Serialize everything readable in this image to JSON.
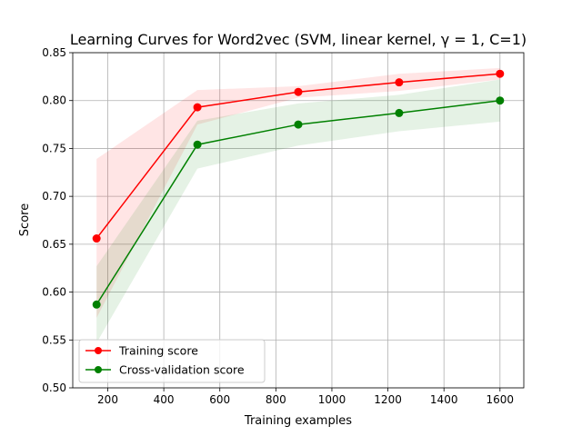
{
  "chart_data": {
    "type": "line",
    "title": "Learning Curves for Word2vec (SVM, linear kernel, γ = 1, C=1)",
    "xlabel": "Training examples",
    "ylabel": "Score",
    "xlim": [
      75,
      1685
    ],
    "ylim": [
      0.5,
      0.85
    ],
    "xticks": [
      200,
      400,
      600,
      800,
      1000,
      1200,
      1400,
      1600
    ],
    "yticks": [
      0.5,
      0.55,
      0.6,
      0.65,
      0.7,
      0.75,
      0.8,
      0.85
    ],
    "xtick_labels": [
      "200",
      "400",
      "600",
      "800",
      "1000",
      "1200",
      "1400",
      "1600"
    ],
    "ytick_labels": [
      "0.50",
      "0.55",
      "0.60",
      "0.65",
      "0.70",
      "0.75",
      "0.80",
      "0.85"
    ],
    "grid": true,
    "legend_position": "lower-left",
    "x": [
      160,
      520,
      880,
      1240,
      1600
    ],
    "series": [
      {
        "name": "Training score",
        "color": "#ff0000",
        "fill_color": "#ff0000",
        "values": [
          0.656,
          0.793,
          0.809,
          0.819,
          0.828
        ],
        "band_upper": [
          0.739,
          0.811,
          0.815,
          0.828,
          0.834
        ],
        "band_lower": [
          0.573,
          0.775,
          0.803,
          0.81,
          0.822
        ]
      },
      {
        "name": "Cross-validation score",
        "color": "#008000",
        "fill_color": "#008000",
        "values": [
          0.587,
          0.754,
          0.775,
          0.787,
          0.8
        ],
        "band_upper": [
          0.627,
          0.779,
          0.797,
          0.806,
          0.822
        ],
        "band_lower": [
          0.547,
          0.729,
          0.753,
          0.768,
          0.778
        ]
      }
    ]
  }
}
